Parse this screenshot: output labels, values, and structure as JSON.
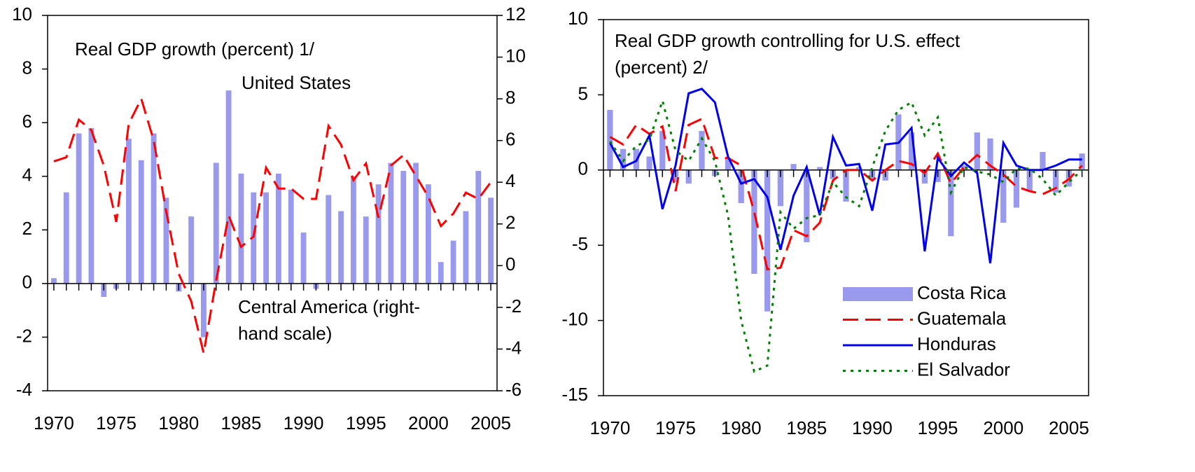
{
  "chart_data": [
    {
      "type": "combo",
      "title": "Real GDP growth (percent) 1/",
      "x": [
        1970,
        1971,
        1972,
        1973,
        1974,
        1975,
        1976,
        1977,
        1978,
        1979,
        1980,
        1981,
        1982,
        1983,
        1984,
        1985,
        1986,
        1987,
        1988,
        1989,
        1990,
        1991,
        1992,
        1993,
        1994,
        1995,
        1996,
        1997,
        1998,
        1999,
        2000,
        2001,
        2002,
        2003,
        2004,
        2005
      ],
      "xlim": [
        1969.5,
        2005.5
      ],
      "xticks": [
        1970,
        1975,
        1980,
        1985,
        1990,
        1995,
        2000,
        2005
      ],
      "ylim": [
        -4,
        10
      ],
      "yticks": [
        -4,
        -2,
        0,
        2,
        4,
        6,
        8,
        10
      ],
      "y2lim": [
        -6,
        12
      ],
      "y2ticks": [
        -6,
        -4,
        -2,
        0,
        2,
        4,
        6,
        8,
        10,
        12
      ],
      "series": [
        {
          "name": "United States",
          "kind": "bar",
          "color": "#9999ee",
          "values": [
            0.2,
            3.4,
            5.6,
            5.8,
            -0.5,
            -0.2,
            5.4,
            4.6,
            5.6,
            3.2,
            -0.3,
            2.5,
            -2.0,
            4.5,
            7.2,
            4.1,
            3.4,
            3.4,
            4.1,
            3.5,
            1.9,
            -0.2,
            3.3,
            2.7,
            4.0,
            2.5,
            3.7,
            4.5,
            4.2,
            4.5,
            3.7,
            0.8,
            1.6,
            2.7,
            4.2,
            3.2
          ]
        },
        {
          "name": [
            "Central America (right-",
            "hand scale)"
          ],
          "kind": "line",
          "style": "dashed",
          "axis": "y2",
          "color": "#ff0000",
          "values": [
            5.0,
            5.2,
            7.0,
            6.5,
            4.8,
            2.1,
            6.8,
            8.0,
            6.0,
            2.6,
            -0.4,
            -1.7,
            -4.2,
            -0.7,
            2.4,
            0.9,
            1.4,
            4.7,
            3.7,
            3.7,
            3.2,
            3.2,
            6.7,
            5.8,
            4.1,
            4.9,
            2.3,
            4.8,
            5.3,
            4.3,
            3.3,
            1.9,
            2.5,
            3.5,
            3.2,
            4.0
          ]
        }
      ]
    },
    {
      "type": "combo",
      "title": [
        "Real GDP growth controlling for U.S. effect",
        "(percent) 2/"
      ],
      "x": [
        1970,
        1971,
        1972,
        1973,
        1974,
        1975,
        1976,
        1977,
        1978,
        1979,
        1980,
        1981,
        1982,
        1983,
        1984,
        1985,
        1986,
        1987,
        1988,
        1989,
        1990,
        1991,
        1992,
        1993,
        1994,
        1995,
        1996,
        1997,
        1998,
        1999,
        2000,
        2001,
        2002,
        2003,
        2004,
        2005,
        2006
      ],
      "xlim": [
        1969.5,
        2006.5
      ],
      "xticks": [
        1970,
        1975,
        1980,
        1985,
        1990,
        1995,
        2000,
        2005
      ],
      "ylim": [
        -15,
        10
      ],
      "yticks": [
        -15,
        -10,
        -5,
        0,
        5,
        10
      ],
      "legend": "lower right",
      "series": [
        {
          "name": "Costa Rica",
          "kind": "bar",
          "color": "#9999ee",
          "values": [
            4.0,
            1.4,
            1.4,
            0.9,
            2.6,
            -0.8,
            -0.9,
            2.6,
            -0.4,
            0.8,
            -2.2,
            -6.9,
            -9.4,
            -2.4,
            0.4,
            -4.8,
            0.2,
            -0.6,
            -2.1,
            0.2,
            -0.6,
            -0.7,
            3.7,
            2.5,
            -0.9,
            -0.8,
            -4.4,
            0.3,
            2.5,
            2.1,
            -3.5,
            -2.5,
            -1.4,
            1.2,
            -1.5,
            -1.1,
            1.1
          ]
        },
        {
          "name": "Guatemala",
          "kind": "line",
          "style": "dashed",
          "color": "#ff0000",
          "values": [
            2.2,
            1.7,
            3.0,
            2.4,
            2.9,
            -1.4,
            3.0,
            3.4,
            0.8,
            0.8,
            0.3,
            -2.8,
            -6.6,
            -6.5,
            -4.0,
            -4.4,
            -3.5,
            -0.7,
            0.0,
            0.0,
            -0.7,
            0.0,
            0.6,
            0.4,
            -0.2,
            1.1,
            -0.9,
            0.2,
            1.0,
            0.3,
            -0.3,
            -1.1,
            -1.4,
            -1.6,
            -1.2,
            -0.6,
            0.3
          ]
        },
        {
          "name": "Honduras",
          "kind": "line",
          "style": "solid",
          "color": "#0000ee",
          "values": [
            1.8,
            0.2,
            0.6,
            2.3,
            -2.6,
            0.3,
            5.1,
            5.4,
            4.5,
            0.9,
            -0.9,
            -0.6,
            -1.8,
            -5.3,
            -1.7,
            0.2,
            -3.0,
            2.2,
            0.3,
            0.4,
            -2.7,
            1.7,
            1.8,
            2.8,
            -5.4,
            0.8,
            -0.4,
            0.5,
            -0.2,
            -6.2,
            1.8,
            0.3,
            0.0,
            0.0,
            0.3,
            0.7,
            0.7
          ]
        },
        {
          "name": "El Salvador",
          "kind": "line",
          "style": "dotted",
          "color": "#008000",
          "values": [
            1.9,
            0.6,
            1.6,
            2.0,
            4.6,
            1.3,
            0.6,
            2.1,
            0.6,
            -3.0,
            -10.0,
            -13.4,
            -13.0,
            -2.8,
            -3.9,
            -3.2,
            -3.0,
            -0.8,
            -1.8,
            -2.4,
            0.2,
            2.6,
            4.0,
            4.5,
            2.3,
            3.5,
            -1.5,
            0.2,
            -0.1,
            -0.3,
            -0.8,
            0.1,
            0.1,
            -0.6,
            -1.7,
            -0.8,
            0.0
          ]
        }
      ]
    }
  ]
}
